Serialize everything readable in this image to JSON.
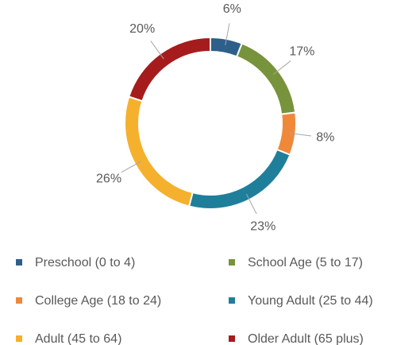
{
  "chart_data": {
    "type": "donut",
    "categories": [
      "Preschool (0 to 4)",
      "School Age (5 to 17)",
      "College Age (18 to 24)",
      "Young Adult (25 to 44)",
      "Adult (45 to 64)",
      "Older Adult (65 plus)"
    ],
    "values": [
      6,
      17,
      8,
      23,
      26,
      20
    ],
    "value_labels": [
      "6%",
      "17%",
      "8%",
      "23%",
      "26%",
      "20%"
    ],
    "colors": [
      "#2e5f8a",
      "#77933c",
      "#f0883a",
      "#1f7f9a",
      "#f5b02e",
      "#a61c1c"
    ],
    "legend": "bottom"
  }
}
